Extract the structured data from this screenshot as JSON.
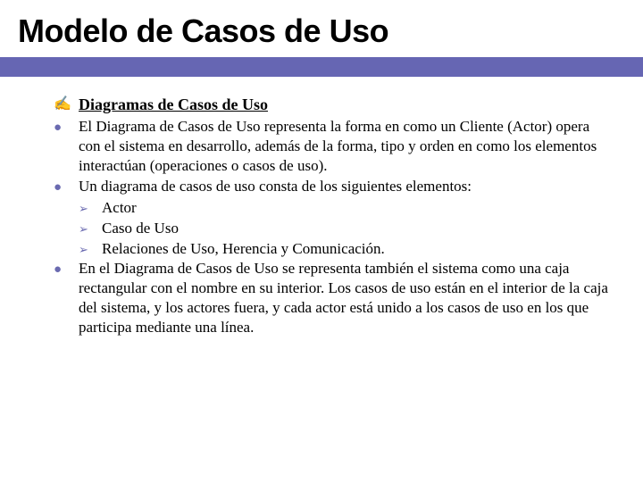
{
  "colors": {
    "accent": "#6666b3",
    "bullet": "#6a6ab0",
    "background": "#ffffff",
    "text": "#000000"
  },
  "typography": {
    "title_font": "Arial",
    "title_fontsize": 36,
    "title_weight": "bold",
    "body_font": "Georgia",
    "body_fontsize": 17,
    "heading_fontsize": 18
  },
  "slide": {
    "title": "Modelo de Casos de Uso",
    "items": [
      {
        "type": "heading",
        "bullet_glyph": "✍",
        "text": "Diagramas de Casos de Uso"
      },
      {
        "type": "bullet",
        "bullet_glyph": "●",
        "text": "El Diagrama de Casos de Uso representa la forma en como un Cliente (Actor) opera con el sistema en desarrollo, además de la forma, tipo y orden en como los elementos interactúan (operaciones o casos de uso)."
      },
      {
        "type": "bullet",
        "bullet_glyph": "●",
        "text": "Un diagrama de casos de uso consta de los siguientes elementos:",
        "sub": [
          {
            "chev": "➢",
            "text": "Actor"
          },
          {
            "chev": "➢",
            "text": "Caso de Uso"
          },
          {
            "chev": "➢",
            "text": "Relaciones de Uso, Herencia y Comunicación."
          }
        ]
      },
      {
        "type": "bullet",
        "bullet_glyph": "●",
        "text": "En el Diagrama de Casos de Uso se representa también el sistema como una caja rectangular con el nombre en su interior. Los casos de uso están en el interior de la caja del sistema, y los actores fuera, y cada actor está unido a los casos de uso en los que participa mediante una línea."
      }
    ]
  }
}
